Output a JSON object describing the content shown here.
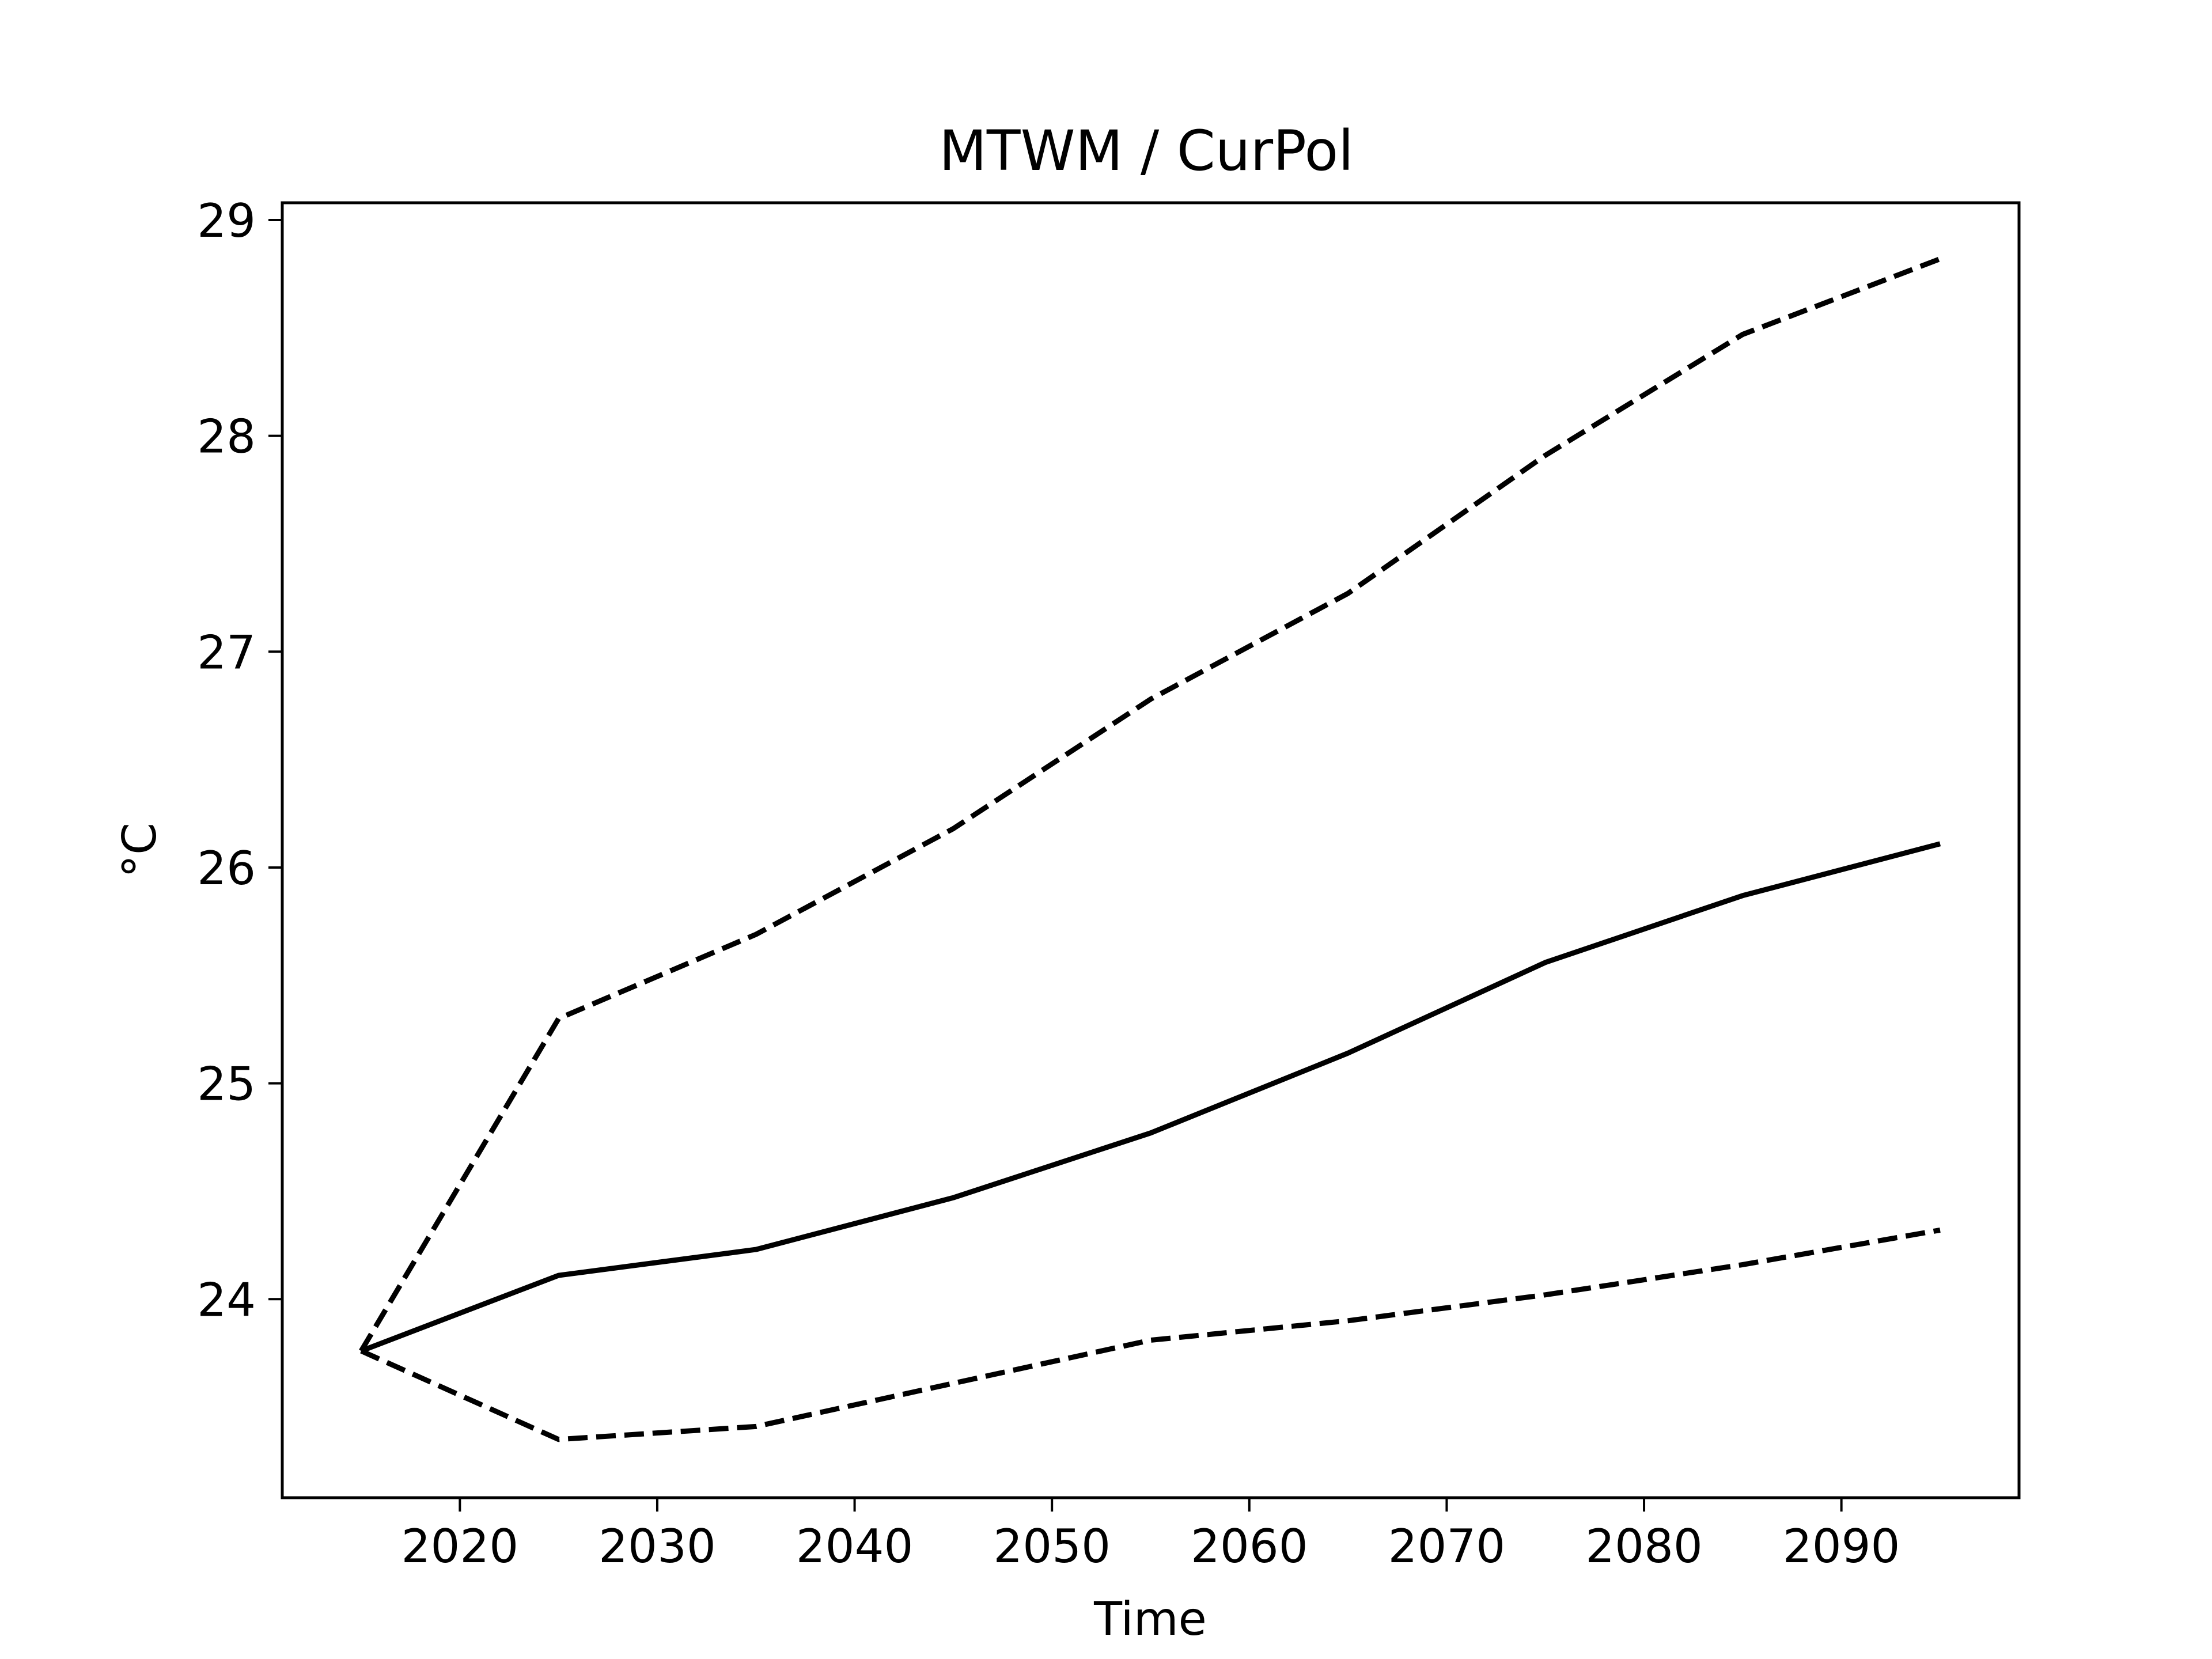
{
  "chart_data": {
    "type": "line",
    "title": "MTWM / CurPol",
    "xlabel": "Time",
    "ylabel": "°C",
    "x": [
      2015,
      2025,
      2035,
      2045,
      2055,
      2065,
      2075,
      2085,
      2095
    ],
    "series": [
      {
        "values": [
          23.76,
          24.11,
          24.23,
          24.47,
          24.77,
          25.14,
          25.56,
          25.87,
          26.11
        ],
        "style": "solid"
      },
      {
        "values": [
          23.76,
          25.3,
          25.69,
          26.18,
          26.78,
          27.27,
          27.91,
          28.47,
          28.82
        ],
        "style": "dashed"
      },
      {
        "values": [
          23.76,
          23.35,
          23.41,
          23.61,
          23.81,
          23.9,
          24.02,
          24.16,
          24.32
        ],
        "style": "dashed"
      }
    ],
    "xlim": [
      2011,
      2099
    ],
    "ylim": [
      23.08,
      29.08
    ],
    "xticks": [
      2020,
      2030,
      2040,
      2050,
      2060,
      2070,
      2080,
      2090
    ],
    "yticks": [
      24,
      25,
      26,
      27,
      28,
      29
    ],
    "grid": false,
    "line_color": "#000000"
  }
}
